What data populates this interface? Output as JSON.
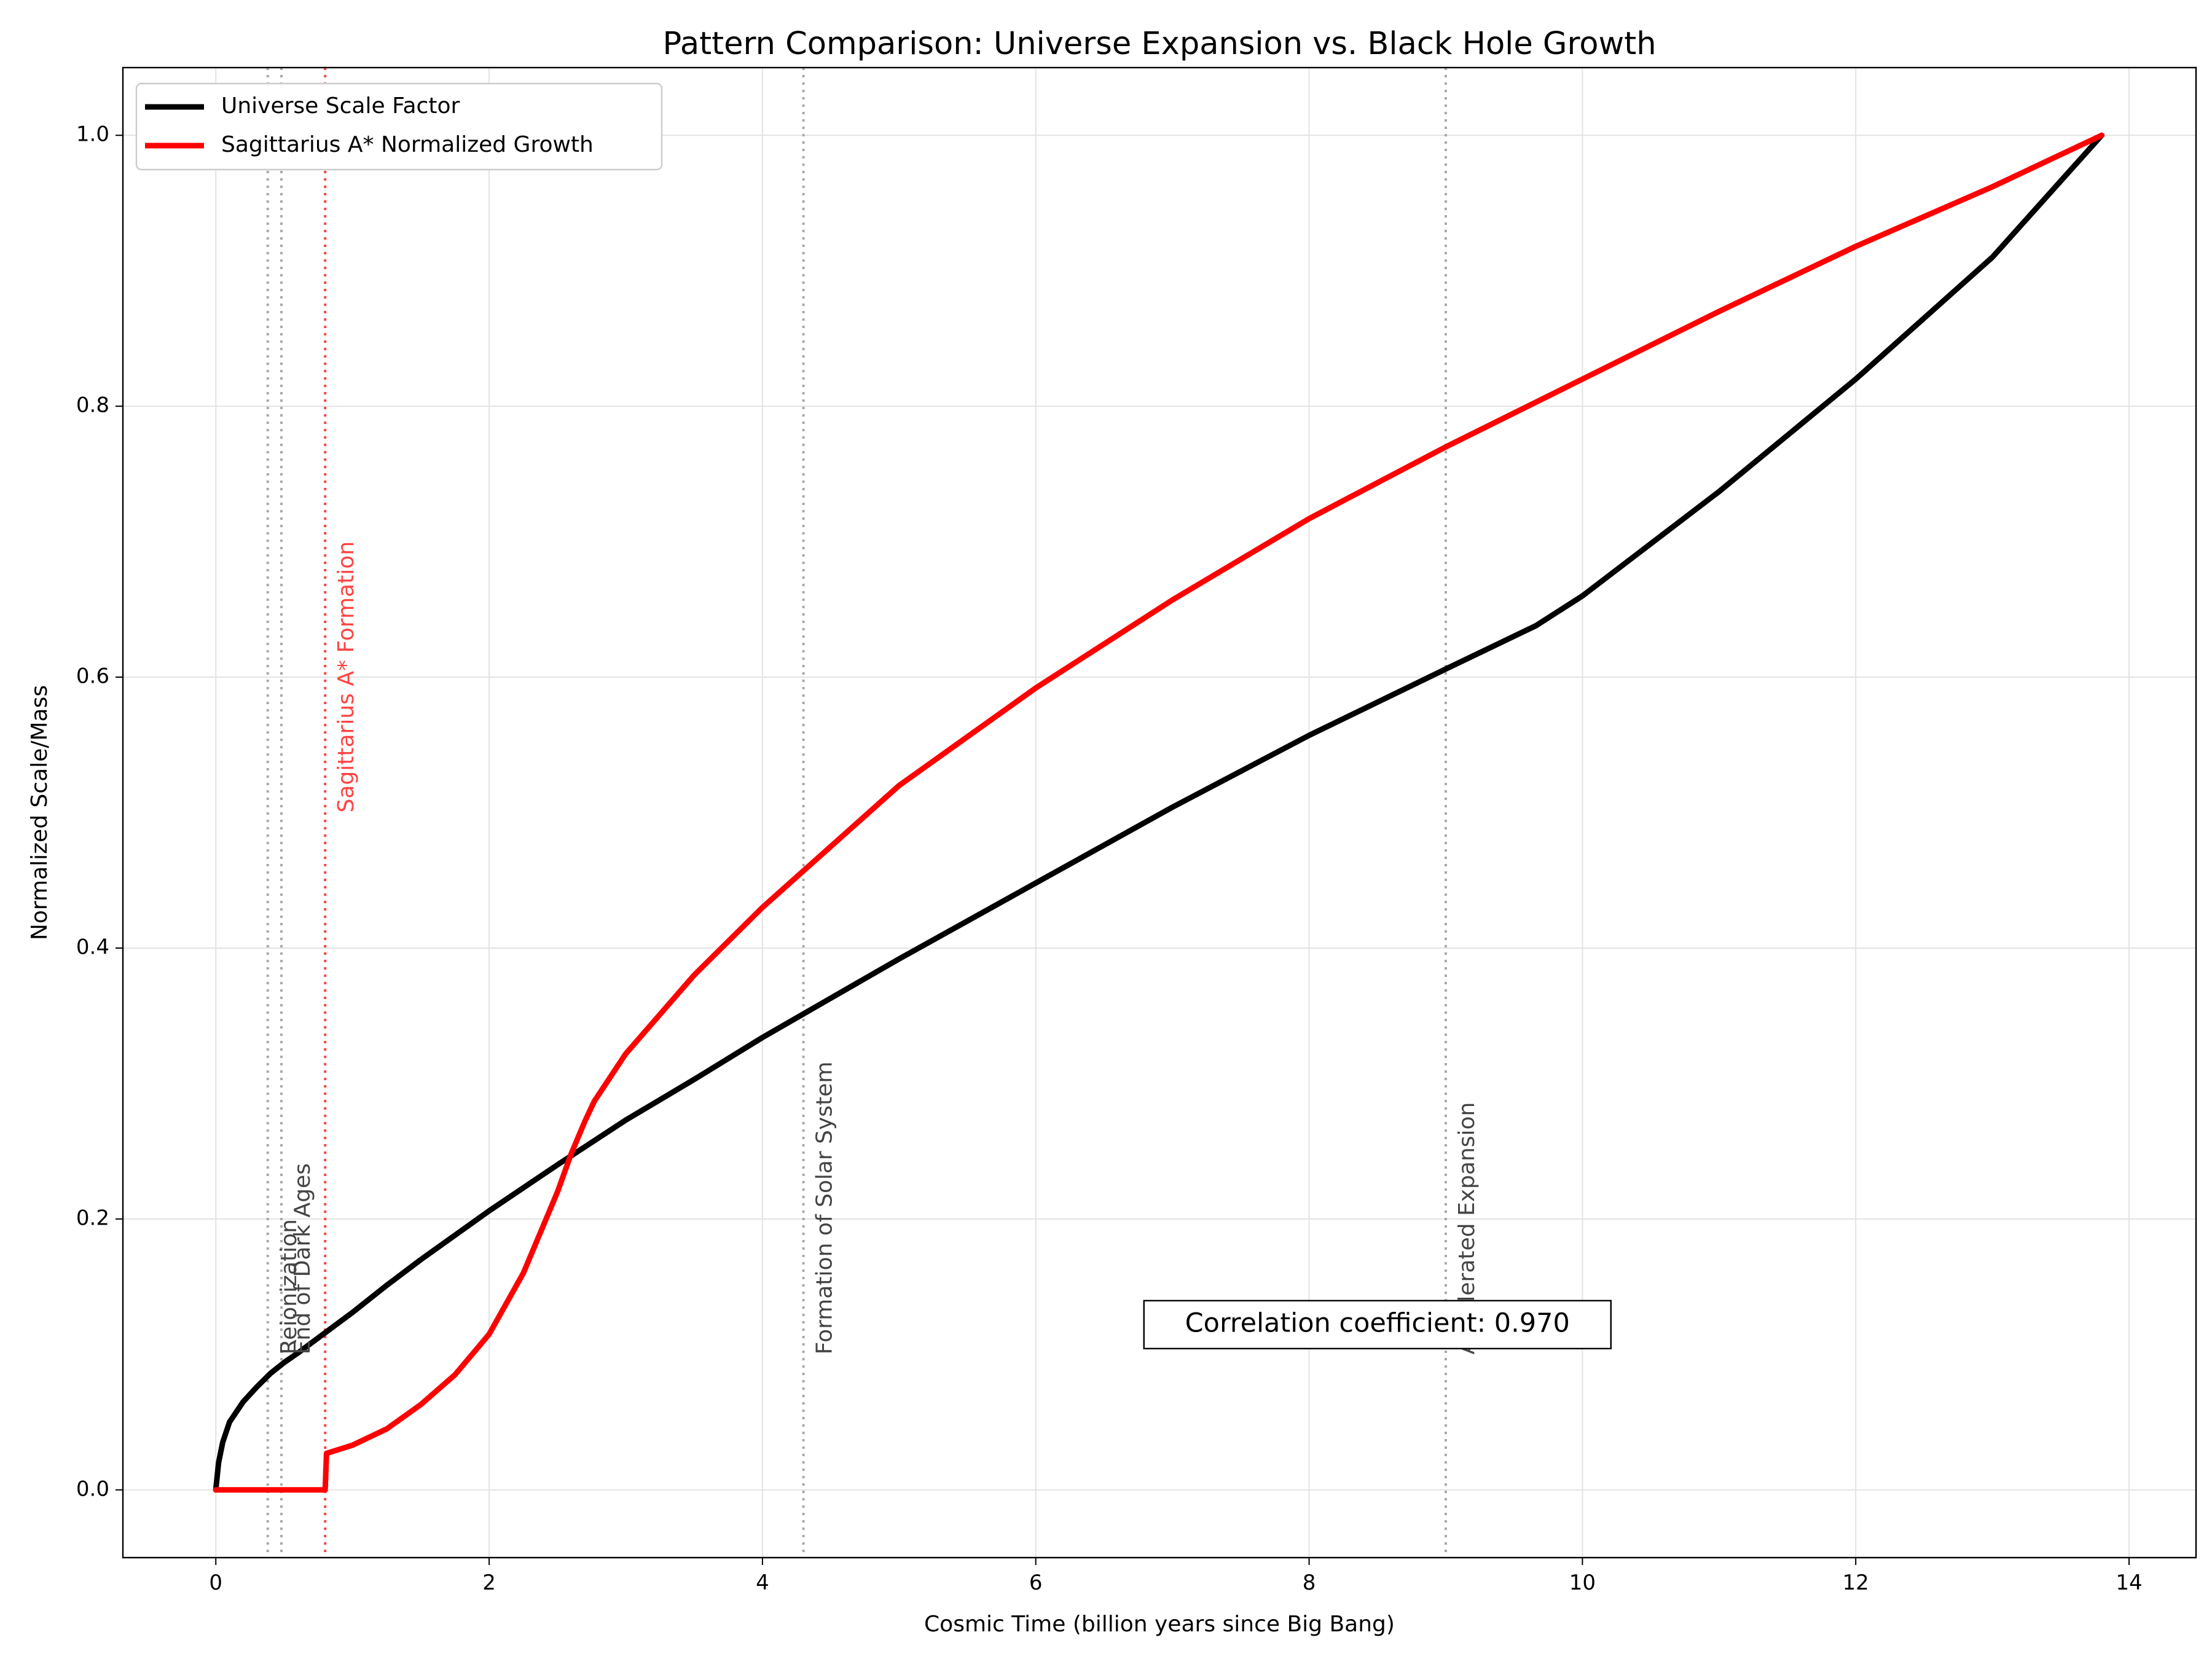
{
  "chart_data": {
    "type": "line",
    "title": "Pattern Comparison: Universe Expansion vs. Black Hole Growth",
    "xlabel": "Cosmic Time (billion years since Big Bang)",
    "ylabel": "Normalized Scale/Mass",
    "xlim": [
      -0.68,
      14.49
    ],
    "ylim": [
      -0.05,
      1.05
    ],
    "xticks": [
      0,
      2,
      4,
      6,
      8,
      10,
      12,
      14
    ],
    "xtick_labels": [
      "0",
      "2",
      "4",
      "6",
      "8",
      "10",
      "12",
      "14"
    ],
    "yticks": [
      0.0,
      0.2,
      0.4,
      0.6,
      0.8,
      1.0
    ],
    "ytick_labels": [
      "0.0",
      "0.2",
      "0.4",
      "0.6",
      "0.8",
      "1.0"
    ],
    "grid": true,
    "legend_position": "top-left",
    "series": [
      {
        "name": "Universe Scale Factor",
        "color": "#000000",
        "x": [
          0,
          0.02,
          0.05,
          0.1,
          0.2,
          0.3,
          0.4,
          0.5,
          0.6,
          0.8,
          1.0,
          1.25,
          1.5,
          2.0,
          2.5,
          3.0,
          3.5,
          4.0,
          4.5,
          5.0,
          6.0,
          7.0,
          8.0,
          9.0,
          9.66,
          10.0,
          11.0,
          12.0,
          13.0,
          13.8
        ],
        "y": [
          0.0,
          0.02,
          0.035,
          0.05,
          0.065,
          0.076,
          0.086,
          0.094,
          0.101,
          0.116,
          0.131,
          0.151,
          0.17,
          0.206,
          0.24,
          0.273,
          0.303,
          0.334,
          0.363,
          0.392,
          0.448,
          0.504,
          0.557,
          0.606,
          0.638,
          0.66,
          0.737,
          0.82,
          0.91,
          1.0
        ]
      },
      {
        "name": "Sagittarius A* Normalized Growth",
        "color": "#ff0000",
        "x": [
          0,
          0.8,
          0.81,
          1.0,
          1.25,
          1.5,
          1.75,
          2.0,
          2.25,
          2.5,
          2.6,
          2.7,
          2.77,
          3.0,
          3.5,
          4.0,
          4.5,
          5.0,
          6.0,
          7.0,
          8.0,
          9.0,
          10.0,
          11.0,
          12.0,
          13.0,
          13.8
        ],
        "y": [
          0.0,
          0.0,
          0.027,
          0.033,
          0.045,
          0.063,
          0.085,
          0.115,
          0.16,
          0.22,
          0.248,
          0.272,
          0.287,
          0.322,
          0.38,
          0.43,
          0.475,
          0.52,
          0.592,
          0.657,
          0.717,
          0.77,
          0.82,
          0.87,
          0.918,
          0.962,
          1.0
        ]
      }
    ],
    "events": [
      {
        "x": 0.38,
        "label": "Reionization",
        "color": "#aaaaaa",
        "label_color": "#444444",
        "label_y": 0.1
      },
      {
        "x": 0.48,
        "label": "End of Dark Ages",
        "color": "#aaaaaa",
        "label_color": "#444444",
        "label_y": 0.1
      },
      {
        "x": 0.8,
        "label": "Sagittarius A* Formation",
        "color": "#ff4444",
        "label_color": "#ff4444",
        "label_y": 0.5
      },
      {
        "x": 4.3,
        "label": "Formation of Solar System",
        "color": "#aaaaaa",
        "label_color": "#444444",
        "label_y": 0.1
      },
      {
        "x": 9.0,
        "label": "Accelerated Expansion",
        "color": "#aaaaaa",
        "label_color": "#444444",
        "label_y": 0.1
      }
    ],
    "annotation": {
      "text": "Correlation coefficient: 0.970",
      "x": 8.5,
      "y": 0.122
    }
  }
}
